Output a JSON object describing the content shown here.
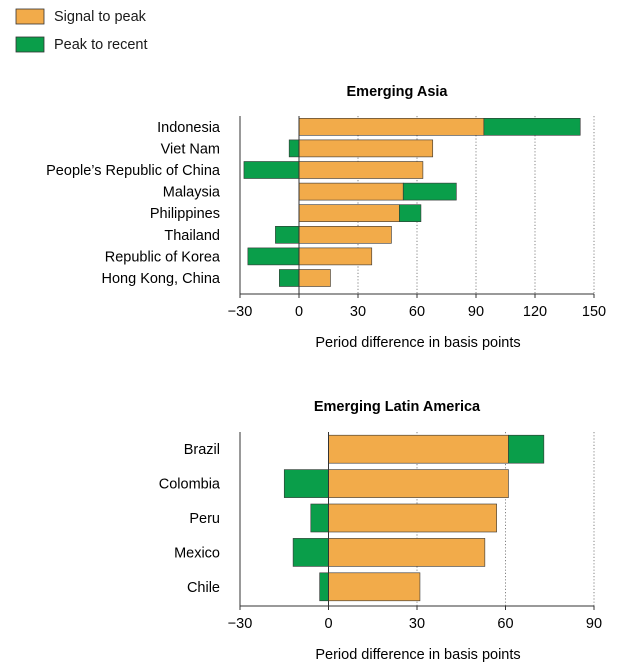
{
  "legend": [
    {
      "label": "Signal to peak",
      "color": "#F2AB4A"
    },
    {
      "label": "Peak to recent",
      "color": "#0A9E4A"
    }
  ],
  "chart_data": [
    {
      "type": "bar",
      "orientation": "horizontal",
      "stacked": "diverging",
      "title": "Emerging Asia",
      "xlabel": "Period difference in basis points",
      "ylabel": "",
      "xlim": [
        -30,
        150
      ],
      "xticks": [
        -30,
        0,
        30,
        60,
        90,
        120,
        150
      ],
      "grid": "vertical dotted",
      "categories": [
        "Indonesia",
        "Viet Nam",
        "People’s Republic of China",
        "Malaysia",
        "Philippines",
        "Thailand",
        "Republic of Korea",
        "Hong Kong, China"
      ],
      "series": [
        {
          "name": "Signal to peak",
          "values": [
            94,
            68,
            63,
            53,
            51,
            47,
            37,
            16
          ]
        },
        {
          "name": "Peak to recent",
          "values": [
            49,
            -5,
            -28,
            27,
            11,
            -12,
            -26,
            -10
          ]
        }
      ]
    },
    {
      "type": "bar",
      "orientation": "horizontal",
      "stacked": "diverging",
      "title": "Emerging Latin America",
      "xlabel": "Period difference in basis points",
      "ylabel": "",
      "xlim": [
        -30,
        90
      ],
      "xticks": [
        -30,
        0,
        30,
        60,
        90
      ],
      "grid": "vertical dotted",
      "categories": [
        "Brazil",
        "Colombia",
        "Peru",
        "Mexico",
        "Chile"
      ],
      "series": [
        {
          "name": "Signal to peak",
          "values": [
            61,
            61,
            57,
            53,
            31
          ]
        },
        {
          "name": "Peak to recent",
          "values": [
            12,
            -15,
            -6,
            -12,
            -3
          ]
        }
      ]
    }
  ]
}
